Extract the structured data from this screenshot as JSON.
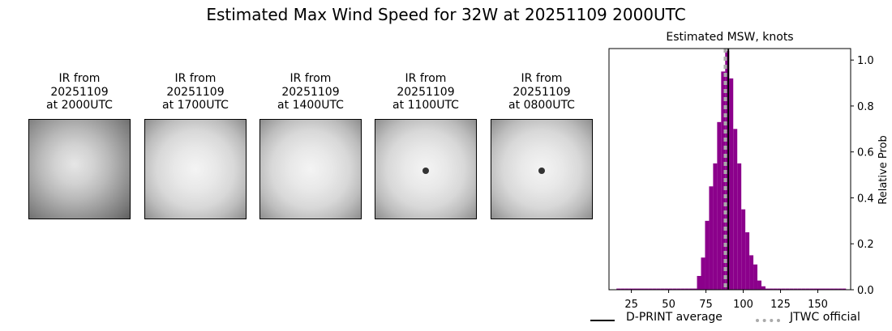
{
  "suptitle": "Estimated Max Wind Speed for 32W at 20251109 2000UTC",
  "panels": [
    {
      "line1": "IR from",
      "line2": "20251109",
      "line3": "at 2000UTC",
      "eye": false,
      "tone": "dark"
    },
    {
      "line1": "IR from",
      "line2": "20251109",
      "line3": "at 1700UTC",
      "eye": false,
      "tone": "bright"
    },
    {
      "line1": "IR from",
      "line2": "20251109",
      "line3": "at 1400UTC",
      "eye": false,
      "tone": "bright"
    },
    {
      "line1": "IR from",
      "line2": "20251109",
      "line3": "at 1100UTC",
      "eye": true,
      "tone": "bright"
    },
    {
      "line1": "IR from",
      "line2": "20251109",
      "line3": "at 0800UTC",
      "eye": true,
      "tone": "bright"
    }
  ],
  "chart_data": {
    "type": "bar",
    "title": "Estimated MSW, knots",
    "ylabel": "Relative Prob",
    "xlim": [
      10,
      172
    ],
    "ylim": [
      0,
      1.05
    ],
    "xticks": [
      25,
      50,
      75,
      100,
      125,
      150
    ],
    "yticks": [
      0.0,
      0.2,
      0.4,
      0.6,
      0.8,
      1.0
    ],
    "ytick_labels": [
      "0.0",
      "0.2",
      "0.4",
      "0.6",
      "0.8",
      "1.0"
    ],
    "y_axis_side": "right",
    "bin_width": 2.7,
    "bins_x": [
      15,
      17.7,
      20.4,
      23.1,
      25.8,
      28.5,
      31.2,
      33.9,
      36.6,
      39.3,
      42.0,
      44.7,
      47.4,
      50.1,
      52.8,
      55.5,
      58.2,
      60.9,
      63.6,
      66.3,
      69.0,
      71.7,
      74.4,
      77.1,
      79.8,
      82.5,
      85.2,
      87.9,
      90.6,
      93.3,
      96.0,
      98.7,
      101.4,
      104.1,
      106.8,
      109.5,
      112.2,
      114.9,
      117.6,
      120.3,
      123.0,
      125.7,
      128.4,
      131.1,
      133.8,
      136.5,
      139.2,
      141.9,
      144.6,
      147.3,
      150.0,
      152.7,
      155.4,
      158.1,
      160.8,
      163.5,
      166.2
    ],
    "values": [
      0.005,
      0.005,
      0.005,
      0.005,
      0.005,
      0.005,
      0.005,
      0.005,
      0.005,
      0.005,
      0.005,
      0.005,
      0.005,
      0.005,
      0.005,
      0.005,
      0.005,
      0.005,
      0.005,
      0.005,
      0.06,
      0.14,
      0.3,
      0.45,
      0.55,
      0.73,
      0.95,
      1.04,
      0.92,
      0.7,
      0.55,
      0.35,
      0.25,
      0.15,
      0.11,
      0.04,
      0.015,
      0.005,
      0.005,
      0.005,
      0.005,
      0.005,
      0.005,
      0.005,
      0.005,
      0.005,
      0.005,
      0.005,
      0.005,
      0.005,
      0.005,
      0.005,
      0.005,
      0.005,
      0.005,
      0.005,
      0.005
    ],
    "bar_color": "#8b008b",
    "dprint_average": 90,
    "jtwc_official": 88,
    "legend": [
      {
        "label": "D-PRINT average",
        "color": "#000000",
        "style": "solid"
      },
      {
        "label": "JTWC official",
        "color": "#aaaaaa",
        "style": "dashed"
      }
    ],
    "legend_placement": "below"
  }
}
